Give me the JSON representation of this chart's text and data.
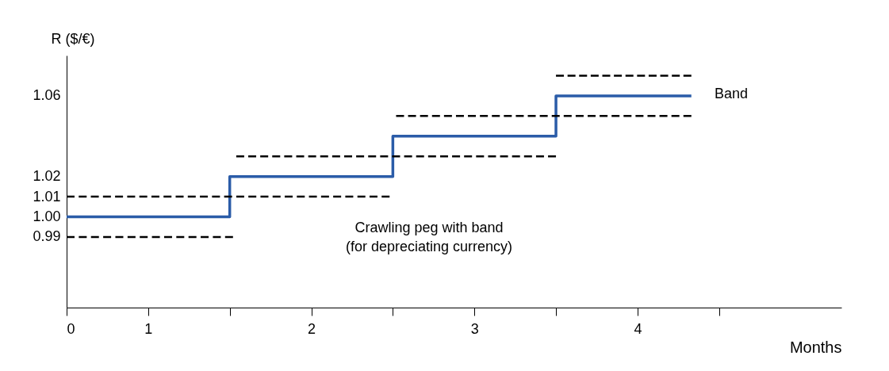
{
  "chart_data": {
    "type": "step",
    "ylabel": "R ($/€)",
    "xlabel": "Months",
    "xlim": [
      0,
      4.75
    ],
    "xticks": [
      0,
      {
        "value": 0.5,
        "label": "1"
      },
      {
        "value": 1,
        "label": null
      },
      {
        "value": 1.5,
        "label": "2"
      },
      {
        "value": 2,
        "label": null
      },
      {
        "value": 2.5,
        "label": "3"
      },
      {
        "value": 3,
        "label": null
      },
      {
        "value": 3.5,
        "label": "4"
      },
      {
        "value": 4,
        "label": null
      }
    ],
    "ylim": [
      0.955,
      1.08
    ],
    "yticks": [
      0.99,
      {
        "value": 1,
        "label": "1.00"
      },
      1.01,
      1.02,
      1.06
    ],
    "grid": false,
    "series": [
      {
        "color": "#2b5ca8",
        "x": [
          0,
          1,
          2,
          3,
          3.83
        ],
        "values": [
          1.0,
          1.02,
          1.04,
          1.06,
          1.06
        ]
      },
      {
        "type": "line",
        "line_style": "dashed",
        "color": "#000000",
        "x": [
          0,
          1.02
        ],
        "values": [
          0.99,
          0.99
        ]
      },
      {
        "type": "line",
        "line_style": "dashed",
        "color": "#000000",
        "x": [
          0,
          1.98
        ],
        "values": [
          1.01,
          1.01
        ]
      },
      {
        "type": "line",
        "line_style": "dashed",
        "color": "#000000",
        "x": [
          1.04,
          3.0
        ],
        "values": [
          1.03,
          1.03
        ]
      },
      {
        "type": "line",
        "line_style": "dashed",
        "color": "#000000",
        "x": [
          2.02,
          3.83
        ],
        "values": [
          1.05,
          1.05
        ]
      },
      {
        "type": "line",
        "line_style": "dashed",
        "color": "#000000",
        "x": [
          3.0,
          3.83
        ],
        "values": [
          1.07,
          1.07
        ]
      }
    ],
    "annotations": [
      "Crawling peg with band\n(for depreciating currency)",
      "Band"
    ]
  }
}
